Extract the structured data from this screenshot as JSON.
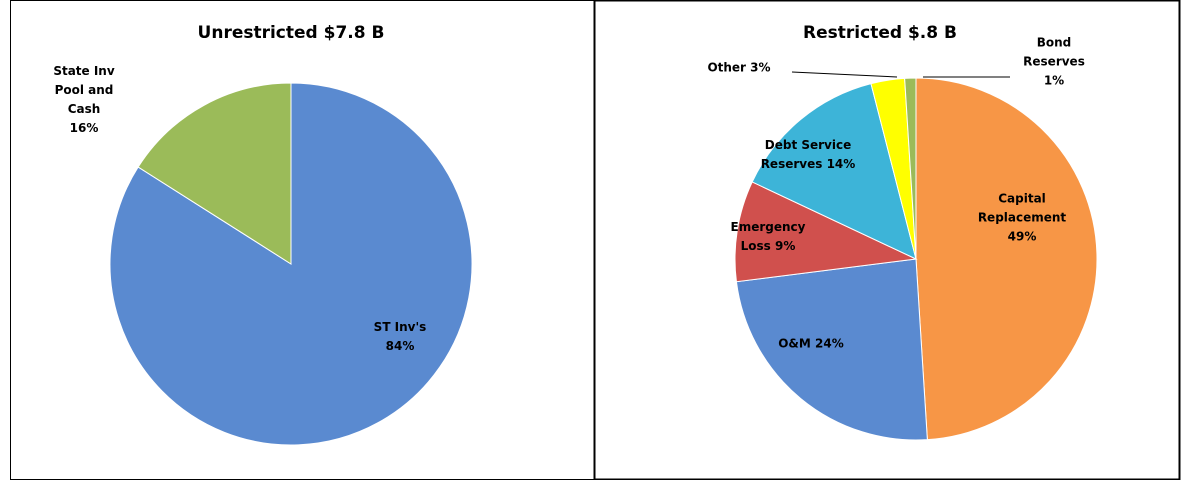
{
  "chart_data": [
    {
      "type": "pie",
      "title": "Unrestricted $7.8 B",
      "categories": [
        "ST Inv's",
        "State Inv Pool and Cash"
      ],
      "values": [
        84,
        16
      ],
      "value_labels": [
        "84%",
        "16%"
      ],
      "colors": [
        "#5a8ad0",
        "#9bbb59"
      ]
    },
    {
      "type": "pie",
      "title": "Restricted $.8 B",
      "categories": [
        "Capital Replacement",
        "O&M",
        "Emergency Loss",
        "Debt Service Reserves",
        "Other",
        "Bond Reserves"
      ],
      "values": [
        49,
        24,
        9,
        14,
        3,
        1
      ],
      "value_labels": [
        "49%",
        "24%",
        "9%",
        "14%",
        "3%",
        "1%"
      ],
      "colors": [
        "#f79646",
        "#5a8ad0",
        "#d0504d",
        "#3db4d8",
        "#ffff00",
        "#9bbb59"
      ]
    }
  ]
}
